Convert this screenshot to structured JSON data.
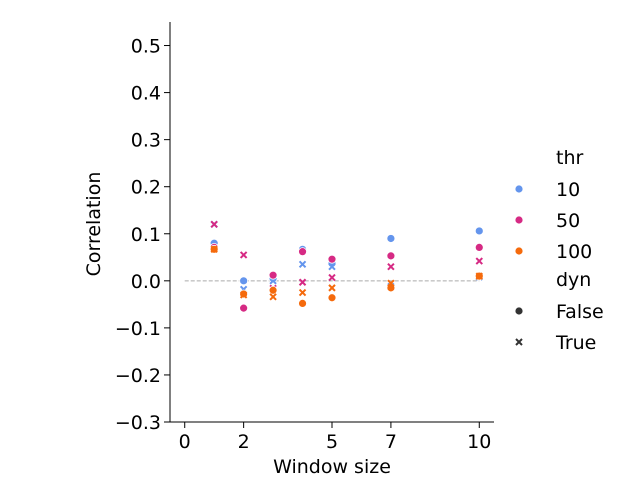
{
  "chart_data": {
    "type": "scatter",
    "title": "",
    "xlabel": "Window size",
    "ylabel": "Correlation",
    "xlim": [
      -0.5,
      10.5
    ],
    "ylim": [
      -0.3,
      0.55
    ],
    "x_ticks": [
      0,
      2,
      5,
      7,
      10
    ],
    "x_tick_labels": [
      "0",
      "2",
      "5",
      "7",
      "10"
    ],
    "y_ticks": [
      -0.3,
      -0.2,
      -0.1,
      0.0,
      0.1,
      0.2,
      0.3,
      0.4,
      0.5
    ],
    "y_tick_labels": [
      "−0.3",
      "−0.2",
      "−0.1",
      "0.0",
      "0.1",
      "0.2",
      "0.3",
      "0.4",
      "0.5"
    ],
    "reference_line": {
      "y": 0.0,
      "style": "dashed",
      "x_range": [
        0,
        10
      ],
      "color": "#aaaaaa"
    },
    "colors": {
      "10": "#6495ed",
      "50": "#d62a84",
      "100": "#f56a0c"
    },
    "legend": {
      "placement": "right",
      "hue_title": "thr",
      "hue_entries": [
        "10",
        "50",
        "100"
      ],
      "style_title": "dyn",
      "style_entries": [
        {
          "label": "False",
          "marker": "circle"
        },
        {
          "label": "True",
          "marker": "x"
        }
      ]
    },
    "series": [
      {
        "name": "10",
        "dyn": "False",
        "marker": "circle",
        "color": "#6495ed",
        "x": [
          1,
          2,
          3,
          4,
          5,
          7,
          10
        ],
        "y": [
          0.08,
          0.0,
          0.005,
          0.067,
          0.037,
          0.09,
          0.106
        ]
      },
      {
        "name": "10",
        "dyn": "True",
        "marker": "x",
        "color": "#6495ed",
        "x": [
          1,
          2,
          3,
          4,
          5,
          7,
          10
        ],
        "y": [
          0.12,
          -0.018,
          0.0,
          0.035,
          0.03,
          -0.012,
          0.008
        ]
      },
      {
        "name": "50",
        "dyn": "False",
        "marker": "circle",
        "color": "#d62a84",
        "x": [
          1,
          2,
          3,
          4,
          5,
          7,
          10
        ],
        "y": [
          0.071,
          -0.058,
          0.012,
          0.062,
          0.046,
          0.053,
          0.071
        ]
      },
      {
        "name": "50",
        "dyn": "True",
        "marker": "x",
        "color": "#d62a84",
        "x": [
          1,
          2,
          3,
          4,
          5,
          7,
          10
        ],
        "y": [
          0.12,
          0.055,
          -0.016,
          -0.003,
          0.007,
          0.03,
          0.042
        ]
      },
      {
        "name": "100",
        "dyn": "False",
        "marker": "circle",
        "color": "#f56a0c",
        "x": [
          1,
          2,
          3,
          4,
          5,
          7,
          10
        ],
        "y": [
          0.067,
          -0.028,
          -0.02,
          -0.048,
          -0.036,
          -0.015,
          0.01
        ]
      },
      {
        "name": "100",
        "dyn": "True",
        "marker": "x",
        "color": "#f56a0c",
        "x": [
          1,
          2,
          3,
          4,
          5,
          7,
          10
        ],
        "y": [
          0.067,
          -0.03,
          -0.034,
          -0.025,
          -0.015,
          -0.005,
          0.01
        ]
      }
    ]
  }
}
